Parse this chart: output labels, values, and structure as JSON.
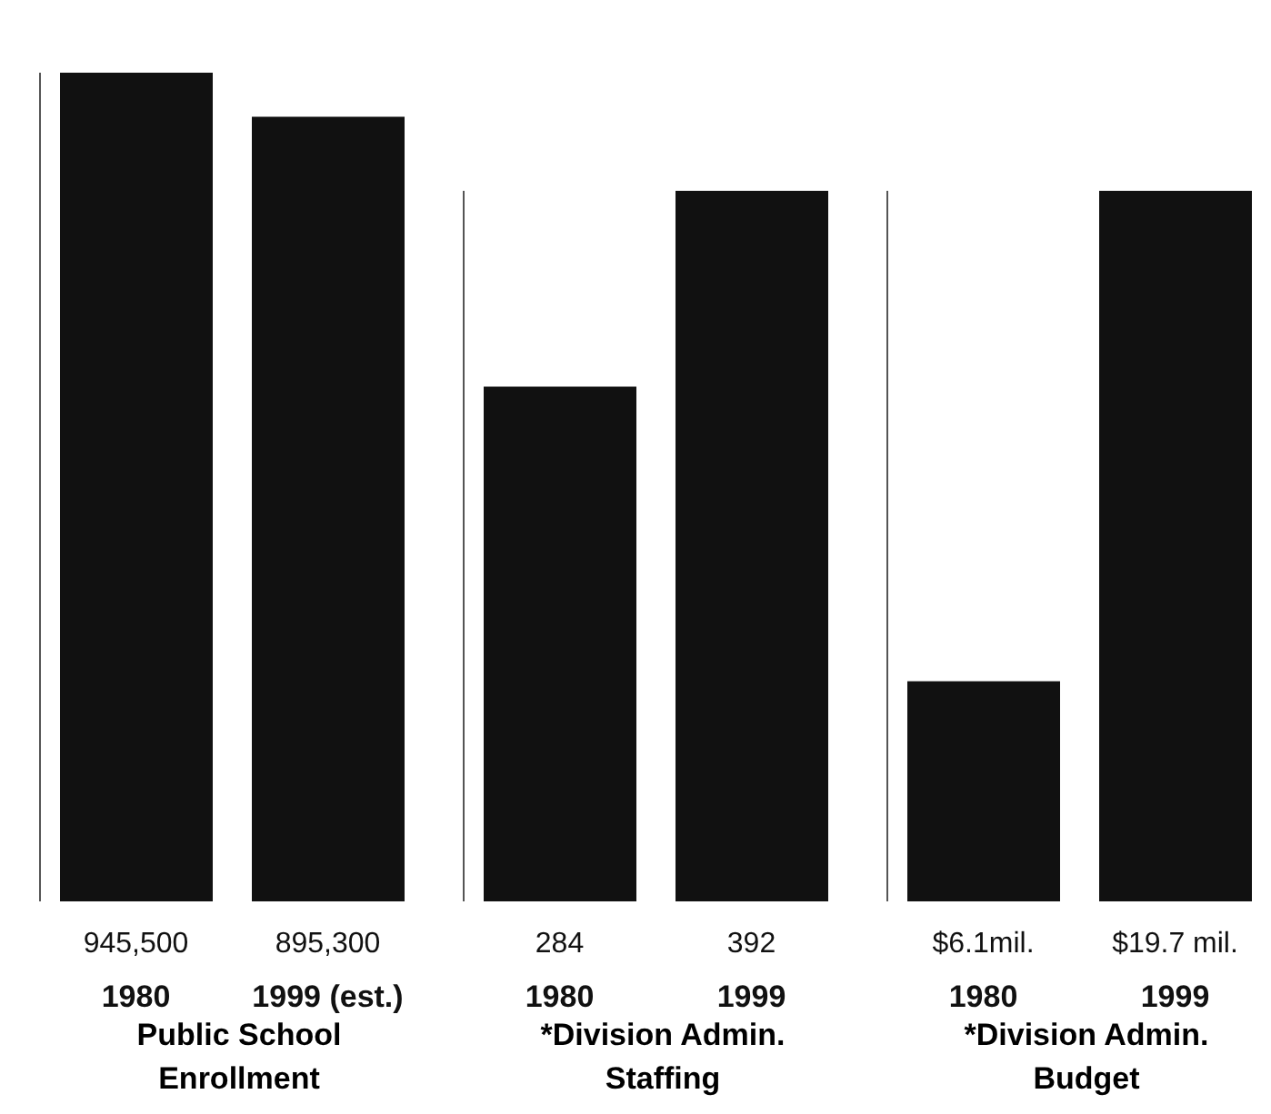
{
  "chart_data": [
    {
      "type": "bar",
      "xlabel": "Public School\nEnrollment",
      "categories": [
        "1980",
        "1999 (est.)"
      ],
      "values": [
        945500,
        895300
      ],
      "value_labels": [
        "945,500",
        "895,300"
      ],
      "color": "#111111",
      "tick_labels": "x"
    },
    {
      "type": "bar",
      "xlabel": "*Division Admin.\nStaffing",
      "categories": [
        "1980",
        "1999"
      ],
      "values": [
        284,
        392
      ],
      "value_labels": [
        "284",
        "392"
      ],
      "color": "#111111",
      "tick_labels": "x"
    },
    {
      "type": "bar",
      "xlabel": "*Division Admin.\nBudget",
      "categories": [
        "1980",
        "1999"
      ],
      "values": [
        6.1,
        19.7
      ],
      "value_labels": [
        "$6.1mil.",
        "$19.7 mil."
      ],
      "color": "#111111",
      "tick_labels": "x"
    }
  ]
}
